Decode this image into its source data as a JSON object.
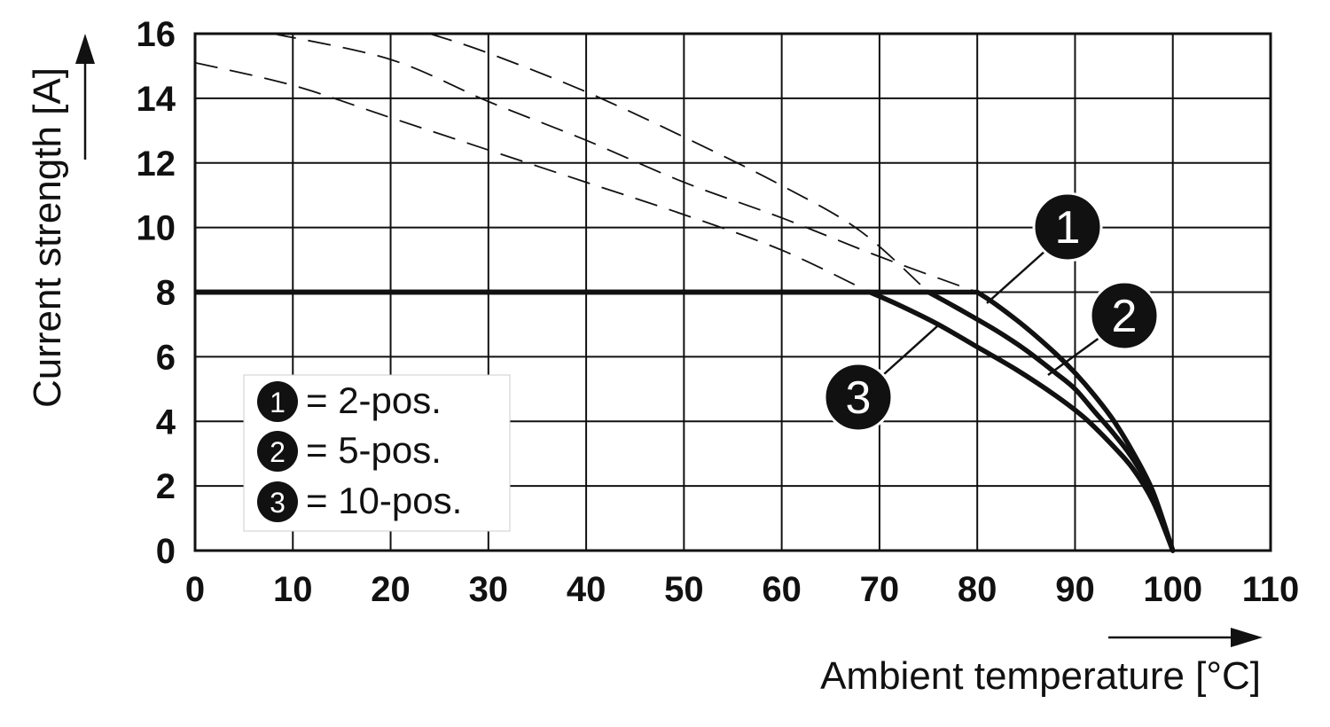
{
  "chart_data": {
    "type": "line",
    "xlabel": "Ambient temperature [°C]",
    "ylabel": "Current strength [A]",
    "xlim": [
      0,
      110
    ],
    "ylim": [
      0,
      16
    ],
    "x_ticks": [
      "0",
      "10",
      "20",
      "30",
      "40",
      "50",
      "60",
      "70",
      "80",
      "90",
      "100",
      "110"
    ],
    "y_ticks": [
      "0",
      "2",
      "4",
      "6",
      "8",
      "10",
      "12",
      "14",
      "16"
    ],
    "grid": true,
    "rated_current": 8,
    "series": [
      {
        "id": "1",
        "legend_label": "= 2-pos.",
        "values": [
          [
            0,
            8
          ],
          [
            80,
            8
          ],
          [
            82,
            7.6
          ],
          [
            85,
            6.9
          ],
          [
            88,
            6.1
          ],
          [
            90,
            5.5
          ],
          [
            92,
            4.8
          ],
          [
            94,
            4.0
          ],
          [
            96,
            3.0
          ],
          [
            98,
            1.8
          ],
          [
            100,
            0
          ]
        ],
        "dashed_extension": [
          [
            8,
            16
          ],
          [
            20,
            15.2
          ],
          [
            30,
            13.9
          ],
          [
            40,
            12.7
          ],
          [
            50,
            11.4
          ],
          [
            60,
            10.3
          ],
          [
            70,
            9.1
          ],
          [
            80,
            8
          ]
        ]
      },
      {
        "id": "2",
        "legend_label": "= 5-pos.",
        "values": [
          [
            0,
            8
          ],
          [
            75,
            8
          ],
          [
            78,
            7.5
          ],
          [
            82,
            6.8
          ],
          [
            85,
            6.2
          ],
          [
            88,
            5.5
          ],
          [
            90,
            5.0
          ],
          [
            92,
            4.3
          ],
          [
            94,
            3.6
          ],
          [
            96,
            2.8
          ],
          [
            98,
            1.7
          ],
          [
            100,
            0
          ]
        ],
        "dashed_extension": [
          [
            24,
            16
          ],
          [
            30,
            15.4
          ],
          [
            40,
            14.2
          ],
          [
            50,
            12.8
          ],
          [
            60,
            11.3
          ],
          [
            68,
            9.9
          ],
          [
            75,
            8
          ]
        ]
      },
      {
        "id": "3",
        "legend_label": "= 10-pos.",
        "values": [
          [
            0,
            8
          ],
          [
            69,
            8
          ],
          [
            72,
            7.6
          ],
          [
            76,
            7.0
          ],
          [
            80,
            6.3
          ],
          [
            84,
            5.6
          ],
          [
            88,
            4.8
          ],
          [
            91,
            4.1
          ],
          [
            94,
            3.2
          ],
          [
            96,
            2.5
          ],
          [
            98,
            1.5
          ],
          [
            100,
            0
          ]
        ],
        "dashed_extension": [
          [
            0,
            15.1
          ],
          [
            10,
            14.4
          ],
          [
            20,
            13.4
          ],
          [
            30,
            12.4
          ],
          [
            40,
            11.4
          ],
          [
            50,
            10.4
          ],
          [
            60,
            9.3
          ],
          [
            69,
            8
          ]
        ]
      }
    ],
    "callouts": [
      {
        "label": "1",
        "anchor": [
          81,
          7.9
        ]
      },
      {
        "label": "2",
        "anchor": [
          87.5,
          5.4
        ]
      },
      {
        "label": "3",
        "anchor": [
          76,
          6.9
        ]
      }
    ],
    "legend_position": "bottom-left inside plot"
  }
}
